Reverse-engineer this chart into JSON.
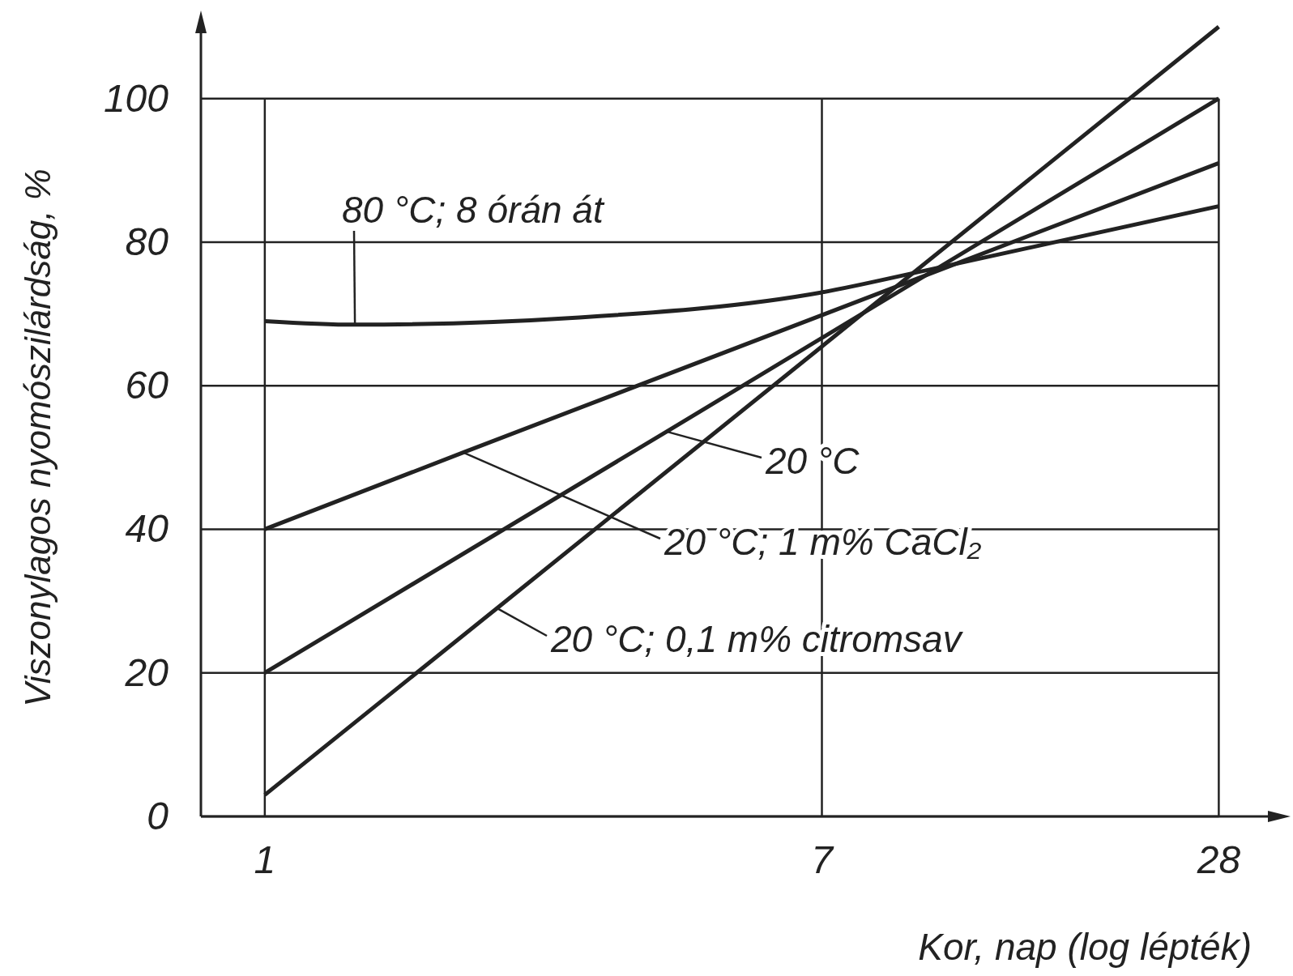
{
  "chart_data": {
    "type": "line",
    "xlabel": "Kor, nap (log lépték)",
    "ylabel": "Viszonylagos nyomószilárdság, %",
    "log": "x",
    "xlim": [
      0.8,
      34
    ],
    "ylim": [
      0,
      110
    ],
    "xticks": [
      1,
      7,
      28
    ],
    "yticks": [
      0,
      20,
      40,
      60,
      80,
      100
    ],
    "grid": true,
    "legend": "center",
    "marker": "none",
    "line_style": "solid",
    "series": [
      {
        "name": "80 °C; 8 órán át",
        "color": "#222222",
        "x": [
          1,
          1.37,
          3,
          7,
          10,
          28
        ],
        "values": [
          69,
          68.5,
          69.5,
          73,
          76,
          85
        ]
      },
      {
        "name": "20 °C",
        "color": "#222222",
        "x": [
          1,
          4.07,
          28
        ],
        "values": [
          20,
          53.6,
          100
        ]
      },
      {
        "name": "20 °C; 1 m% CaCl₂",
        "color": "#222222",
        "x": [
          1,
          2,
          28
        ],
        "values": [
          40,
          50.7,
          91
        ]
      },
      {
        "name": "20 °C; 0,1 m% citromsav",
        "color": "#222222",
        "x": [
          1,
          2.25,
          28
        ],
        "values": [
          3,
          29,
          110
        ]
      }
    ]
  }
}
